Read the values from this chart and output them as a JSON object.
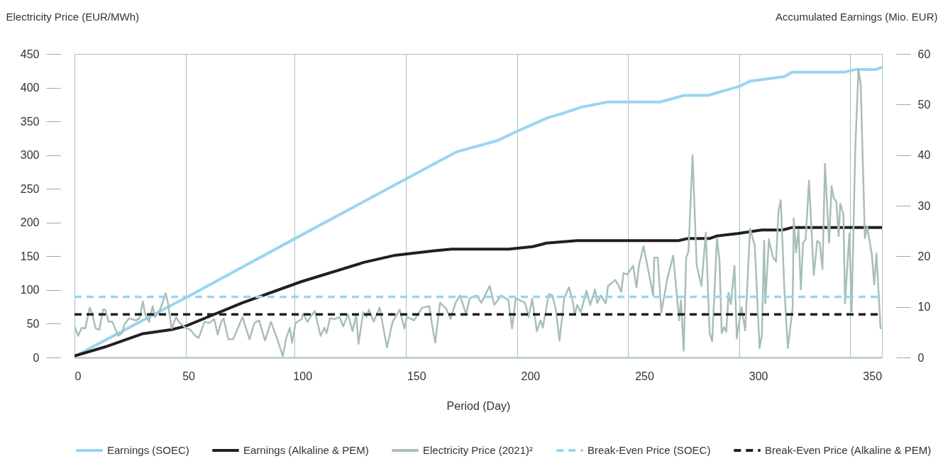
{
  "chart_data": {
    "type": "line",
    "xlabel": "Period (Day)",
    "ylabel": "Electricity Price (EUR/MWh)",
    "y2label": "Accumulated Earnings (Mio. EUR)",
    "xlim": [
      0,
      354.3
    ],
    "xticks": [
      0,
      {
        "value": 48.9,
        "label": null
      },
      50,
      {
        "value": 96.6,
        "label": null
      },
      100,
      {
        "value": 145.5,
        "label": null
      },
      150,
      {
        "value": 194.3,
        "label": null
      },
      200,
      {
        "value": 242.8,
        "label": null
      },
      250,
      {
        "value": 291.7,
        "label": null
      },
      300,
      {
        "value": 340.3,
        "label": null
      },
      350
    ],
    "ylim": [
      0,
      450
    ],
    "yticks": [
      0,
      50,
      100,
      150,
      200,
      250,
      300,
      350,
      400,
      450
    ],
    "y2lim": [
      0,
      60
    ],
    "y2ticks": [
      0,
      10,
      20,
      30,
      40,
      50,
      60
    ],
    "grid": "x",
    "legend": "bottom",
    "line_style": "solid",
    "series": [
      {
        "name": "Earnings (SOEC)",
        "color": "#9ad5f0",
        "axis": "y2",
        "x": [
          0,
          50,
          99.6,
          167.4,
          185.8,
          192.7,
          207.7,
          214.6,
          222.6,
          234,
          257,
          267.5,
          278,
          291.8,
          296.4,
          311.4,
          314.9,
          337.9,
          342.5,
          351.7,
          354.3
        ],
        "values": [
          0.2,
          12.1,
          24.2,
          40.6,
          42.9,
          44.4,
          47.4,
          48.3,
          49.5,
          50.5,
          50.5,
          51.8,
          51.8,
          53.6,
          54.6,
          55.5,
          56.4,
          56.4,
          56.9,
          56.9,
          57.4
        ]
      },
      {
        "name": "Earnings (Alkaline & PEM)",
        "color": "#231f20",
        "axis": "y2",
        "x": [
          0,
          13.5,
          30,
          42.5,
          48.8,
          73.7,
          99.6,
          127,
          140.6,
          158,
          165.5,
          190.5,
          201,
          207,
          220.5,
          265,
          269,
          278.6,
          281.7,
          291,
          301.5,
          310.7,
          315,
          354.3
        ],
        "values": [
          0.3,
          2.1,
          4.7,
          5.5,
          6.2,
          10.8,
          15,
          18.8,
          20.2,
          21.1,
          21.4,
          21.4,
          21.9,
          22.6,
          23.1,
          23.1,
          23.5,
          23.5,
          24,
          24.5,
          25.2,
          25.2,
          25.7,
          25.7
        ]
      },
      {
        "name": "Electricity Price (2021)²",
        "color": "#a8bfb8",
        "x": [
          0,
          1.6,
          3.1,
          4.7,
          6.7,
          7.8,
          9.3,
          10.9,
          12.5,
          13.5,
          15,
          16.6,
          19.2,
          21,
          22,
          24,
          27,
          28.5,
          30,
          31,
          32.7,
          34.3,
          35.3,
          36.9,
          37.9,
          40,
          41,
          42.6,
          44.6,
          45.7,
          46.7,
          48.8,
          50.9,
          53,
          54.5,
          56,
          57.1,
          59.2,
          61.3,
          62.8,
          64.4,
          65.4,
          67.5,
          69.6,
          71.1,
          73.7,
          76.8,
          78.9,
          81,
          83.6,
          86.2,
          88.8,
          91.4,
          92.9,
          94.5,
          95.5,
          97,
          99.7,
          100.2,
          102.2,
          105.4,
          108,
          109.6,
          110.6,
          112.1,
          114.2,
          116.3,
          117.9,
          120,
          122,
          123.6,
          124.6,
          126.7,
          128.2,
          129.2,
          131.3,
          133.9,
          137.1,
          139.6,
          142.7,
          144.8,
          145.8,
          149,
          152.6,
          155.7,
          156.8,
          158.3,
          160.4,
          163,
          165,
          167.2,
          169.2,
          171.8,
          173.4,
          176.5,
          178.5,
          182.2,
          184.2,
          187.3,
          190.4,
          192,
          193.6,
          197.7,
          199.3,
          200.8,
          202.9,
          204.5,
          205.5,
          208.1,
          209.7,
          211.2,
          212.8,
          214.9,
          217,
          218.5,
          219.5,
          220.6,
          222.1,
          224.7,
          226.3,
          228.4,
          229.4,
          231,
          233.1,
          234.1,
          237.3,
          238.8,
          239.9,
          240.9,
          242.5,
          245.1,
          246.6,
          247.7,
          249.7,
          253.9,
          254.4,
          255.9,
          257.5,
          260.1,
          262.7,
          265.3,
          266.1,
          267.3,
          268.4,
          269.4,
          271.2,
          273,
          275.1,
          277,
          278.7,
          279.8,
          281.9,
          283,
          284,
          285,
          286,
          287,
          288,
          289.6,
          290.6,
          292.7,
          294.3,
          296.4,
          298.5,
          300.6,
          301.6,
          302.6,
          303.1,
          304.7,
          306.3,
          307.8,
          308.9,
          309.9,
          311.5,
          313,
          315.1,
          315.6,
          316.6,
          317.7,
          318.7,
          319.7,
          320.8,
          322.3,
          324.4,
          325.9,
          327,
          328.2,
          329.3,
          331.1,
          332.2,
          333.2,
          334.3,
          335.3,
          336,
          337.4,
          338.1,
          340,
          341,
          342.6,
          344,
          345,
          346.8,
          347.8,
          349.9,
          350.9,
          351.9,
          353.7
        ],
        "values": [
          46,
          32,
          44,
          43,
          74,
          64,
          43,
          41,
          71,
          71,
          53,
          53,
          32,
          37,
          50,
          58,
          55,
          58,
          83,
          64,
          53,
          76,
          60,
          67,
          74,
          95,
          81,
          43,
          60,
          53,
          50,
          44,
          41,
          32,
          29,
          43,
          53,
          51,
          57,
          34,
          53,
          58,
          27,
          27,
          39,
          60,
          27,
          51,
          55,
          25,
          53,
          29,
          2,
          29,
          44,
          22,
          51,
          57,
          65,
          53,
          69,
          32,
          44,
          36,
          58,
          57,
          60,
          46,
          64,
          39,
          64,
          20,
          67,
          60,
          71,
          53,
          74,
          15,
          53,
          71,
          43,
          60,
          55,
          74,
          76,
          50,
          22,
          81,
          73,
          57,
          81,
          92,
          64,
          88,
          92,
          81,
          106,
          78,
          92,
          85,
          43,
          88,
          81,
          60,
          87,
          39,
          55,
          44,
          94,
          92,
          71,
          25,
          88,
          104,
          85,
          64,
          78,
          67,
          99,
          78,
          101,
          81,
          92,
          80,
          106,
          115,
          106,
          97,
          125,
          123,
          136,
          104,
          137,
          165,
          92,
          148,
          148,
          67,
          116,
          151,
          55,
          85,
          10,
          148,
          157,
          300,
          137,
          106,
          185,
          36,
          24,
          177,
          145,
          36,
          45,
          38,
          96,
          79,
          136,
          28,
          75,
          40,
          191,
          166,
          14,
          33,
          173,
          80,
          175,
          150,
          142,
          217,
          233,
          100,
          14,
          73,
          206,
          156,
          189,
          101,
          170,
          175,
          262,
          122,
          173,
          170,
          131,
          287,
          170,
          254,
          236,
          231,
          180,
          228,
          212,
          80,
          184,
          68,
          310,
          428,
          404,
          177,
          194,
          152,
          108,
          154,
          42
        ]
      },
      {
        "name": "Break-Even Price (SOEC)",
        "color": "#9ad5f0",
        "line_style": "dashed",
        "x": [
          0,
          354.3
        ],
        "values": [
          90,
          90
        ]
      },
      {
        "name": "Break-Even Price (Alkaline & PEM)",
        "color": "#231f20",
        "line_style": "dashed",
        "x": [
          0,
          354.3
        ],
        "values": [
          64,
          64
        ]
      }
    ]
  }
}
